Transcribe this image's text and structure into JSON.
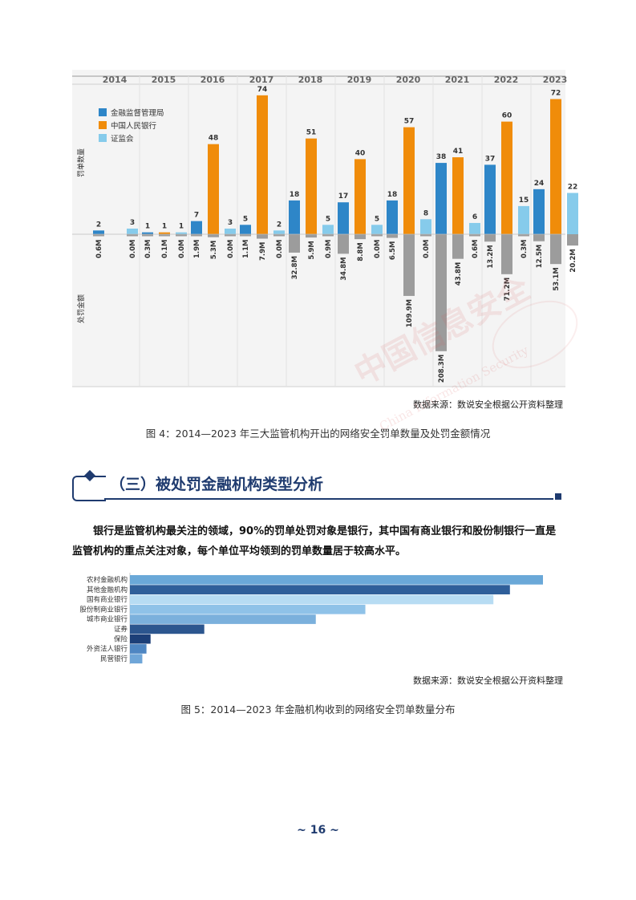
{
  "figure4": {
    "source": "数据来源：数说安全根据公开资料整理",
    "caption": "图 4：2014—2023 年三大监管机构开出的网络安全罚单数量及处罚金额情况"
  },
  "section": {
    "title": "（三）被处罚金融机构类型分析"
  },
  "paragraph": "银行是监管机构最关注的领域，90%的罚单处罚对象是银行，其中国有商业银行和股份制银行一直是监管机构的重点关注对象，每个单位平均领到的罚单数量居于较高水平。",
  "figure5": {
    "source": "数据来源：数说安全根据公开资料整理",
    "caption": "图 5：2014—2023 年金融机构收到的网络安全罚单数量分布"
  },
  "page_number": "~ 16 ~",
  "watermark": {
    "text": "中国信息安全",
    "text_en": "China Information Security"
  },
  "colors": {
    "blue": "#2e86c8",
    "orange": "#f08c0a",
    "lightblue": "#86cbeb",
    "gray": "#9c9c9c",
    "navy": "#1f3b6f"
  },
  "chart_data": [
    {
      "type": "bar",
      "categories": [
        "2014",
        "2015",
        "2016",
        "2017",
        "2018",
        "2019",
        "2020",
        "2021",
        "2022",
        "2023"
      ],
      "ylabel_top": "罚单数量",
      "ylabel_bottom": "处罚金额",
      "legend_position": "top-left",
      "series": [
        {
          "name": "金融监督管理局",
          "color": "#2e86c8",
          "values": [
            2,
            1,
            7,
            5,
            18,
            17,
            18,
            38,
            37,
            24
          ],
          "amounts": [
            "0.6M",
            "0.3M",
            "1.9M",
            "1.1M",
            "32.8M",
            "34.8M",
            "6.5M",
            "208.3M",
            "13.2M",
            "12.5M"
          ],
          "amount_values": [
            0.6,
            0.3,
            1.9,
            1.1,
            32.8,
            34.8,
            6.5,
            208.3,
            13.2,
            12.5
          ]
        },
        {
          "name": "中国人民银行",
          "color": "#f08c0a",
          "values": [
            0,
            1,
            48,
            74,
            51,
            40,
            57,
            41,
            60,
            72
          ],
          "value_labels": [
            "",
            "1",
            "48",
            "74",
            "51",
            "40",
            "57",
            "41",
            "60",
            "72"
          ],
          "amounts": [
            "",
            "0.1M",
            "5.3M",
            "7.9M",
            "5.9M",
            "8.8M",
            "109.9M",
            "43.8M",
            "71.2M",
            "53.1M"
          ],
          "amount_values": [
            0,
            0.1,
            5.3,
            7.9,
            5.9,
            8.8,
            109.9,
            43.8,
            71.2,
            53.1
          ]
        },
        {
          "name": "证监会",
          "color": "#86cbeb",
          "values": [
            3,
            1,
            3,
            2,
            5,
            5,
            8,
            6,
            15,
            22
          ],
          "amounts": [
            "0.0M",
            "0.0M",
            "0.0M",
            "0.0M",
            "0.9M",
            "0.0M",
            "0.0M",
            "0.6M",
            "0.3M",
            "20.2M"
          ],
          "amount_values": [
            0,
            0,
            0,
            0,
            0.9,
            0,
            0,
            0.6,
            0.3,
            20.2
          ]
        }
      ]
    },
    {
      "type": "bar",
      "orientation": "horizontal",
      "categories": [
        "农村金融机构",
        "其他金融机构",
        "国有商业银行",
        "股份制商业银行",
        "城市商业银行",
        "证券",
        "保险",
        "外资法人银行",
        "民营银行"
      ],
      "values": [
        100,
        92,
        88,
        57,
        45,
        18,
        5,
        4,
        3
      ],
      "colors": [
        "#6aa8d8",
        "#2f5f9a",
        "#b7dcf3",
        "#8fc2e8",
        "#7bb0dc",
        "#2c568f",
        "#1c3f78",
        "#4e86c2",
        "#6fa6d8"
      ]
    }
  ]
}
